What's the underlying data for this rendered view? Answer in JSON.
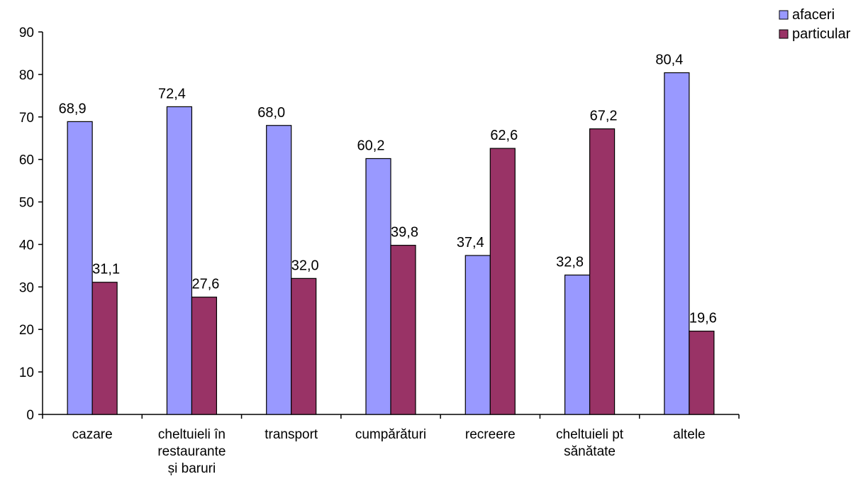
{
  "chart_data": {
    "type": "bar",
    "categories": [
      [
        "cazare"
      ],
      [
        "cheltuieli în",
        "restaurante",
        "și baruri"
      ],
      [
        "transport"
      ],
      [
        "cumpărături"
      ],
      [
        "recreere"
      ],
      [
        "cheltuieli pt",
        "sănătate"
      ],
      [
        "altele"
      ]
    ],
    "series": [
      {
        "name": "afaceri",
        "color": "#9999ff",
        "values": [
          68.9,
          72.4,
          68.0,
          60.2,
          37.4,
          32.8,
          80.4
        ],
        "labels": [
          "68,9",
          "72,4",
          "68,0",
          "60,2",
          "37,4",
          "32,8",
          "80,4"
        ]
      },
      {
        "name": "particular",
        "color": "#993366",
        "values": [
          31.1,
          27.6,
          32.0,
          39.8,
          62.6,
          67.2,
          19.6
        ],
        "labels": [
          "31,1",
          "27,6",
          "32,0",
          "39,8",
          "62,6",
          "67,2",
          "19,6"
        ]
      }
    ],
    "ylim": [
      0,
      90
    ],
    "yticks": [
      "0",
      "10",
      "20",
      "30",
      "40",
      "50",
      "60",
      "70",
      "80",
      "90"
    ],
    "grid": false,
    "legend": "top-right"
  }
}
